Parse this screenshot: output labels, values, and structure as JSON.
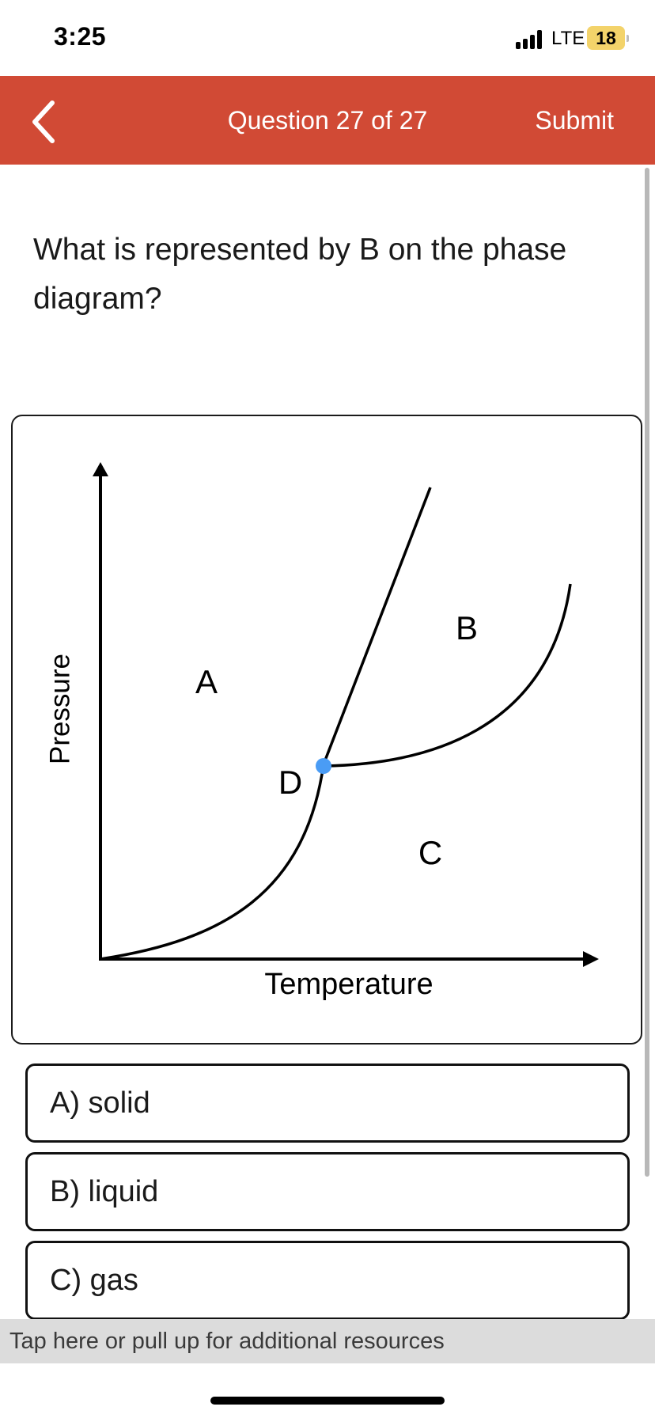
{
  "status": {
    "time": "3:25",
    "network": "LTE",
    "battery": "18"
  },
  "header": {
    "title": "Question 27 of 27",
    "submit_label": "Submit",
    "accent_color": "#d14a35"
  },
  "question": {
    "text": "What is represented by B on the phase diagram?"
  },
  "diagram": {
    "y_axis_label": "Pressure",
    "x_axis_label": "Temperature",
    "region_labels": {
      "a": "A",
      "b": "B",
      "c": "C",
      "d": "D"
    },
    "triple_point_color": "#4a9cf5"
  },
  "options": [
    {
      "label": "A) solid"
    },
    {
      "label": "B) liquid"
    },
    {
      "label": "C) gas"
    }
  ],
  "resources": {
    "text": "Tap here or pull up for additional resources"
  }
}
